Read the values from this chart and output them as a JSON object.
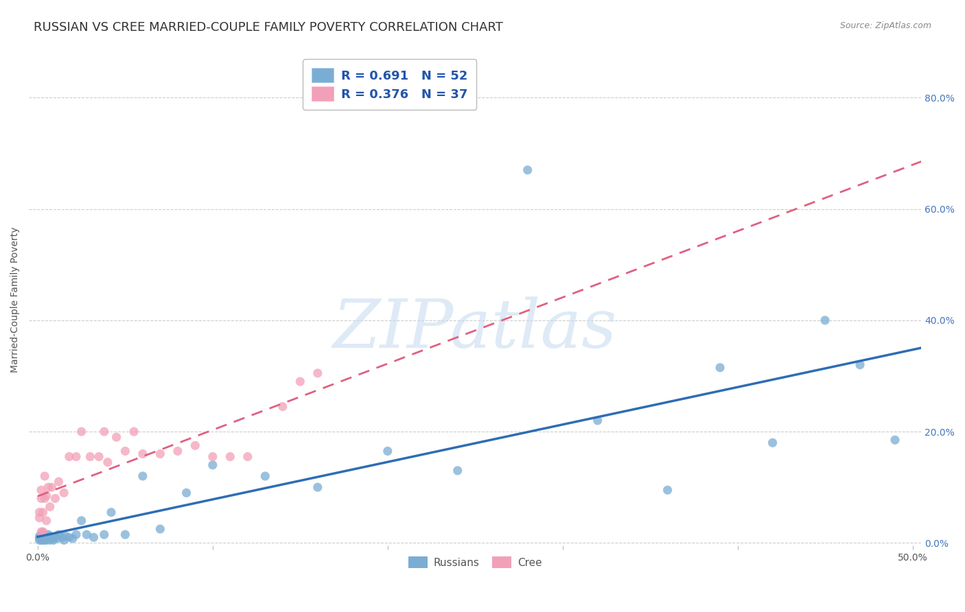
{
  "title": "RUSSIAN VS CREE MARRIED-COUPLE FAMILY POVERTY CORRELATION CHART",
  "source": "Source: ZipAtlas.com",
  "ylabel": "Married-Couple Family Poverty",
  "xlabel_ticks_shown": [
    "0.0%",
    "50.0%"
  ],
  "xlabel_vals_shown": [
    0.0,
    0.5
  ],
  "xlabel_minor_vals": [
    0.1,
    0.2,
    0.3,
    0.4
  ],
  "ylabel_ticks_shown": [
    "0.0%",
    "20.0%",
    "40.0%",
    "60.0%",
    "80.0%"
  ],
  "ylabel_vals_shown": [
    0.0,
    0.2,
    0.4,
    0.6,
    0.8
  ],
  "xlim": [
    -0.005,
    0.505
  ],
  "ylim": [
    -0.005,
    0.88
  ],
  "russian_R": 0.691,
  "russian_N": 52,
  "cree_R": 0.376,
  "cree_N": 37,
  "russian_color": "#7aadd4",
  "cree_color": "#f2a0b8",
  "russian_line_color": "#2e6db4",
  "cree_line_color": "#e06080",
  "background_color": "#FFFFFF",
  "grid_color": "#cccccc",
  "title_fontsize": 13,
  "axis_label_fontsize": 10,
  "tick_fontsize": 10,
  "rus_x": [
    0.001,
    0.001,
    0.001,
    0.002,
    0.002,
    0.002,
    0.002,
    0.003,
    0.003,
    0.003,
    0.003,
    0.004,
    0.004,
    0.005,
    0.005,
    0.006,
    0.006,
    0.007,
    0.007,
    0.008,
    0.009,
    0.01,
    0.011,
    0.012,
    0.014,
    0.015,
    0.016,
    0.018,
    0.02,
    0.022,
    0.025,
    0.028,
    0.032,
    0.038,
    0.042,
    0.05,
    0.06,
    0.07,
    0.085,
    0.1,
    0.13,
    0.16,
    0.2,
    0.24,
    0.28,
    0.32,
    0.36,
    0.39,
    0.42,
    0.45,
    0.47,
    0.49
  ],
  "rus_y": [
    0.005,
    0.008,
    0.012,
    0.005,
    0.008,
    0.01,
    0.015,
    0.005,
    0.008,
    0.01,
    0.018,
    0.005,
    0.012,
    0.005,
    0.01,
    0.008,
    0.015,
    0.005,
    0.012,
    0.008,
    0.005,
    0.01,
    0.008,
    0.015,
    0.01,
    0.005,
    0.012,
    0.01,
    0.008,
    0.015,
    0.04,
    0.015,
    0.01,
    0.015,
    0.055,
    0.015,
    0.12,
    0.025,
    0.09,
    0.14,
    0.12,
    0.1,
    0.165,
    0.13,
    0.67,
    0.22,
    0.095,
    0.315,
    0.18,
    0.4,
    0.32,
    0.185
  ],
  "cree_x": [
    0.001,
    0.001,
    0.002,
    0.002,
    0.002,
    0.003,
    0.003,
    0.004,
    0.004,
    0.005,
    0.005,
    0.006,
    0.007,
    0.008,
    0.01,
    0.012,
    0.015,
    0.018,
    0.022,
    0.025,
    0.03,
    0.035,
    0.038,
    0.04,
    0.045,
    0.05,
    0.055,
    0.06,
    0.07,
    0.08,
    0.09,
    0.1,
    0.11,
    0.12,
    0.14,
    0.15,
    0.16
  ],
  "cree_y": [
    0.045,
    0.055,
    0.02,
    0.08,
    0.095,
    0.02,
    0.055,
    0.08,
    0.12,
    0.04,
    0.085,
    0.1,
    0.065,
    0.1,
    0.08,
    0.11,
    0.09,
    0.155,
    0.155,
    0.2,
    0.155,
    0.155,
    0.2,
    0.145,
    0.19,
    0.165,
    0.2,
    0.16,
    0.16,
    0.165,
    0.175,
    0.155,
    0.155,
    0.155,
    0.245,
    0.29,
    0.305
  ]
}
